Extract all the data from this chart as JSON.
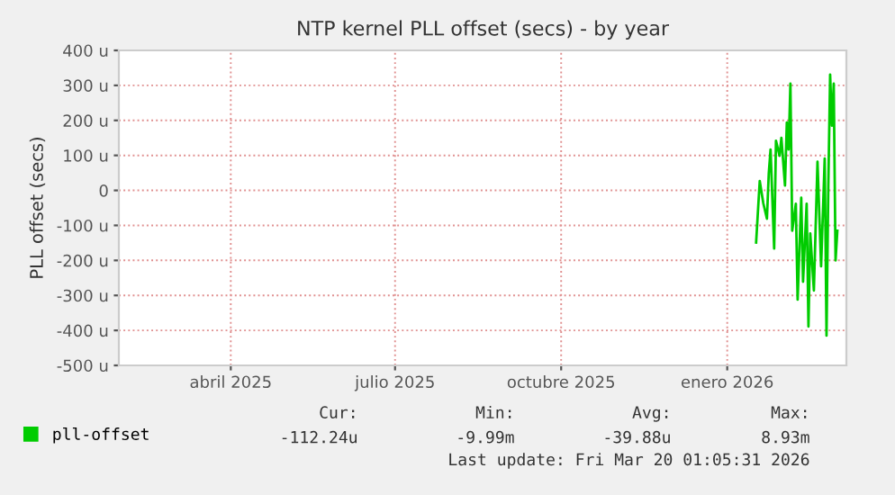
{
  "chart_data": {
    "type": "line",
    "title": "NTP kernel PLL offset (secs) - by year",
    "ylabel": "PLL offset (secs)",
    "x": [
      "2026-01-17",
      "2026-01-19",
      "2026-01-21",
      "2026-01-23",
      "2026-01-24",
      "2026-01-25",
      "2026-01-27",
      "2026-01-28",
      "2026-01-30",
      "2026-01-31",
      "2026-02-02",
      "2026-02-03",
      "2026-02-04",
      "2026-02-05",
      "2026-02-06",
      "2026-02-08",
      "2026-02-09",
      "2026-02-11",
      "2026-02-12",
      "2026-02-14",
      "2026-02-15",
      "2026-02-16",
      "2026-02-18",
      "2026-02-20",
      "2026-02-22",
      "2026-02-24",
      "2026-02-25",
      "2026-02-26",
      "2026-02-27",
      "2026-02-28",
      "2026-03-01",
      "2026-03-02",
      "2026-03-03"
    ],
    "series": [
      {
        "name": "pll-offset",
        "color": "#00cc00",
        "values": [
          -149,
          27,
          -37,
          -81,
          48,
          117,
          -166,
          142,
          99,
          150,
          14,
          194,
          117,
          305,
          -115,
          -38,
          -312,
          -21,
          -261,
          -38,
          -389,
          -123,
          -286,
          82,
          -217,
          91,
          -415,
          14,
          331,
          185,
          305,
          -200,
          -115
        ]
      }
    ],
    "xlim": [
      "2025-01-29",
      "2026-03-08"
    ],
    "xticks": [
      {
        "value": "2025-04-01",
        "label": "abril 2025"
      },
      {
        "value": "2025-07-01",
        "label": "julio 2025"
      },
      {
        "value": "2025-10-01",
        "label": "octubre 2025"
      },
      {
        "value": "2026-01-01",
        "label": "enero 2026"
      }
    ],
    "ylim": [
      -500,
      400
    ],
    "yticks": [
      {
        "value": -500,
        "label": "-500 u"
      },
      {
        "value": -400,
        "label": "-400 u"
      },
      {
        "value": -300,
        "label": "-300 u"
      },
      {
        "value": -200,
        "label": "-200 u"
      },
      {
        "value": -100,
        "label": "-100 u"
      },
      0,
      {
        "value": 100,
        "label": "100 u"
      },
      {
        "value": 200,
        "label": "200 u"
      },
      {
        "value": 300,
        "label": "300 u"
      },
      {
        "value": 400,
        "label": "400 u"
      }
    ],
    "grid": true,
    "legend": "bottom left",
    "marker": "none",
    "line_style": "solid",
    "annotations": [
      "Cur:",
      "Min:",
      "Avg:",
      "Max:",
      "-112.24u",
      "-9.99m",
      "-39.88u",
      "8.93m",
      "Last update: Fri Mar 20 01:05:31 2026"
    ]
  }
}
